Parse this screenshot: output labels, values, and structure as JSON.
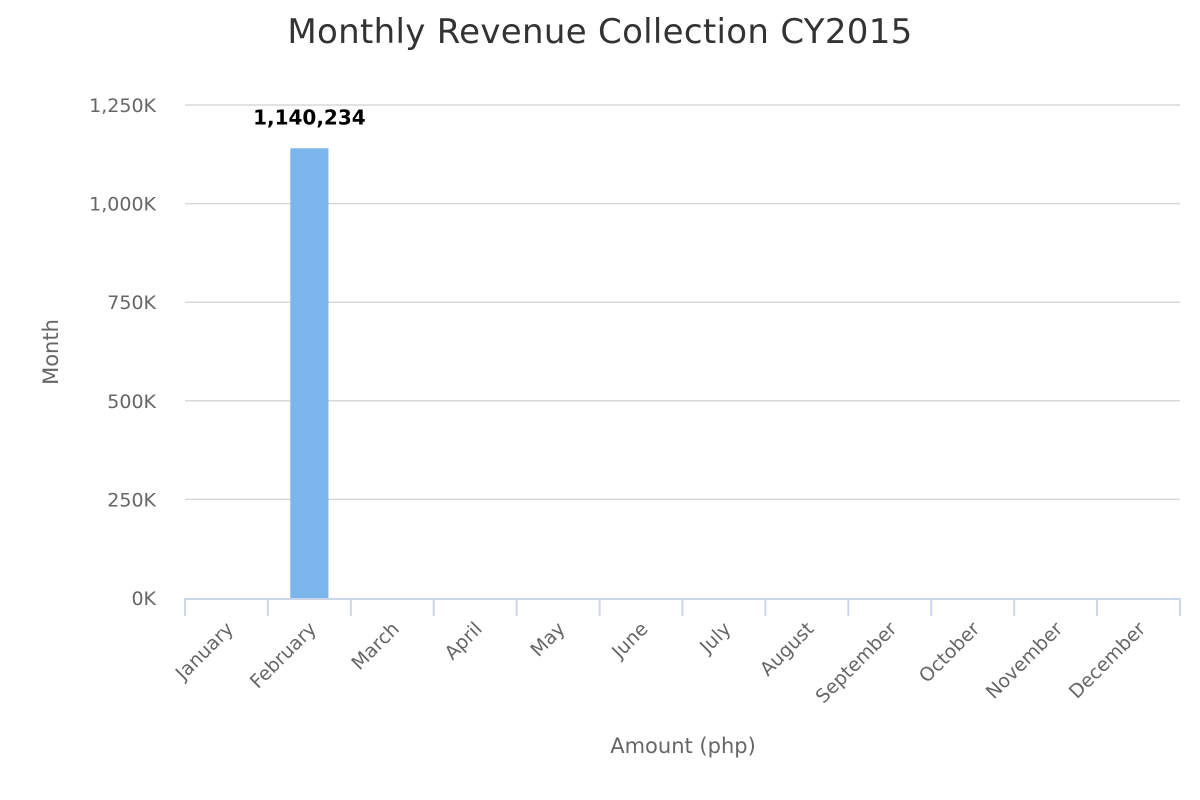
{
  "chart_data": {
    "type": "bar",
    "title": "Monthly Revenue Collection CY2015",
    "xlabel": "Amount (php)",
    "ylabel": "Month",
    "categories": [
      "January",
      "February",
      "March",
      "April",
      "May",
      "June",
      "July",
      "August",
      "September",
      "October",
      "November",
      "December"
    ],
    "values": [
      0,
      1140234,
      0,
      0,
      0,
      0,
      0,
      0,
      0,
      0,
      0,
      0
    ],
    "data_labels": [
      "",
      "1,140,234",
      "",
      "",
      "",
      "",
      "",
      "",
      "",
      "",
      "",
      ""
    ],
    "ylim": [
      0,
      1250000
    ],
    "yticks": [
      0,
      250000,
      500000,
      750000,
      1000000,
      1250000
    ],
    "ytick_labels": [
      "0K",
      "250K",
      "500K",
      "750K",
      "1,000K",
      "1,250K"
    ],
    "grid": true,
    "legend": "none",
    "colors": {
      "bar": "#7cb5ec",
      "grid": "#d8d8d8",
      "axis": "#ccd6eb"
    }
  }
}
